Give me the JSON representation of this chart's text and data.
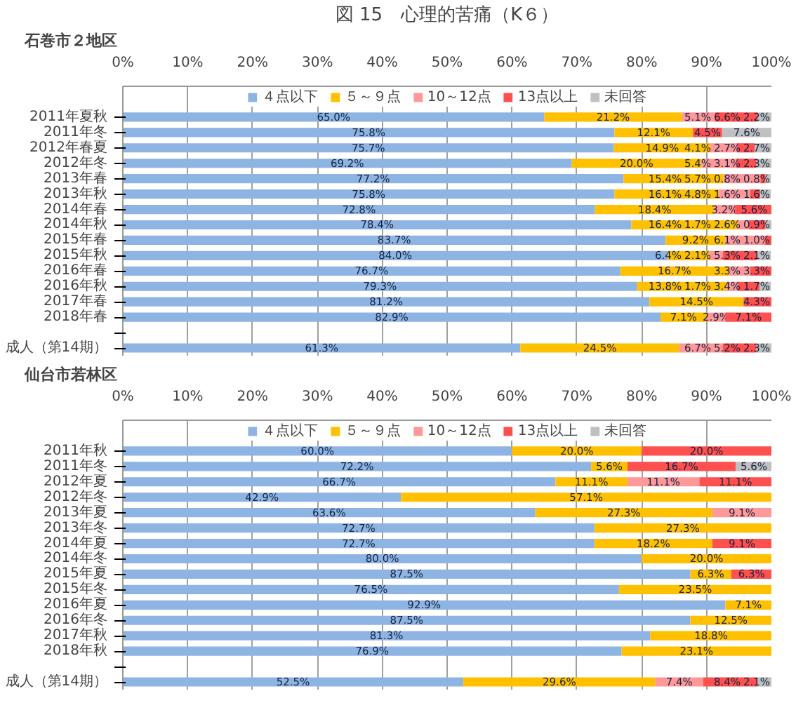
{
  "chart_data": [
    {
      "type": "bar",
      "orientation": "horizontal",
      "stacked": true,
      "title": "図 15　心理的苦痛（K６）",
      "subtitle": "石巻市２地区",
      "legend": "top",
      "grid": "x",
      "categories": [
        "2011年夏秋",
        "2011年冬",
        "2012年春夏",
        "2012年冬",
        "2013年春",
        "2013年秋",
        "2014年春",
        "2014年秋",
        "2015年春",
        "2015年秋",
        "2016年春",
        "2016年秋",
        "2017年春",
        "2018年春",
        null,
        "成人（第14期）"
      ],
      "xlim": [
        0,
        100
      ],
      "xticks": [
        {
          "value": 0,
          "label": "0%"
        },
        {
          "value": 10,
          "label": "10%"
        },
        {
          "value": 20,
          "label": "20%"
        },
        {
          "value": 30,
          "label": "30%"
        },
        {
          "value": 40,
          "label": "40%"
        },
        {
          "value": 50,
          "label": "50%"
        },
        {
          "value": 60,
          "label": "60%"
        },
        {
          "value": 70,
          "label": "70%"
        },
        {
          "value": 80,
          "label": "80%"
        },
        {
          "value": 90,
          "label": "90%"
        },
        {
          "value": 100,
          "label": "100%"
        }
      ],
      "series": [
        {
          "name": "４点以下",
          "color": "#8eb4e3",
          "values": [
            65.0,
            75.8,
            75.7,
            69.2,
            77.2,
            75.8,
            72.8,
            78.4,
            83.7,
            84.0,
            76.7,
            79.3,
            81.2,
            82.9,
            null,
            61.3
          ],
          "value_labels": [
            "65.0%",
            "75.8%",
            "75.7%",
            "69.2%",
            "77.2%",
            "75.8%",
            "72.8%",
            "78.4%",
            "83.7%",
            "84.0%",
            "76.7%",
            "79.3%",
            "81.2%",
            "82.9%",
            null,
            "61.3%"
          ]
        },
        {
          "name": "５～９点",
          "color": "#ffc000",
          "values": [
            21.2,
            12.1,
            14.9,
            20.0,
            15.4,
            16.1,
            18.4,
            16.4,
            9.2,
            6.4,
            16.7,
            13.8,
            14.5,
            7.1,
            null,
            24.5
          ],
          "value_labels": [
            "21.2%",
            "12.1%",
            "14.9%",
            "20.0%",
            "15.4%",
            "16.1%",
            "18.4%",
            "16.4%",
            "9.2%",
            "6.4%",
            "16.7%",
            "13.8%",
            "14.5%",
            "7.1%",
            null,
            "24.5%"
          ]
        },
        {
          "name": "10～12点",
          "color": "#ff9999",
          "values": [
            5.1,
            null,
            4.1,
            5.4,
            5.7,
            4.8,
            3.2,
            1.7,
            6.1,
            2.1,
            3.3,
            1.7,
            null,
            2.9,
            null,
            6.7
          ],
          "value_labels": [
            "5.1%",
            null,
            "4.1%",
            "5.4%",
            "5.7%",
            "4.8%",
            "3.2%",
            "1.7%",
            "6.1%",
            "2.1%",
            "3.3%",
            "1.7%",
            null,
            "2.9%",
            null,
            "6.7%"
          ]
        },
        {
          "name": "13点以上",
          "color": "#ff5050",
          "values": [
            6.6,
            4.5,
            2.7,
            3.1,
            0.8,
            1.6,
            5.6,
            2.6,
            1.0,
            5.3,
            3.3,
            3.4,
            4.3,
            7.1,
            null,
            5.2
          ],
          "value_labels": [
            "6.6%",
            "4.5%",
            "2.7%",
            "3.1%",
            "0.8%",
            "1.6%",
            "5.6%",
            "2.6%",
            "1.0%",
            "5.3%",
            "3.3%",
            "3.4%",
            "4.3%",
            "7.1%",
            null,
            "5.2%"
          ]
        },
        {
          "name": "未回答",
          "color": "#c0c0c0",
          "values": [
            2.2,
            7.6,
            2.7,
            2.3,
            0.8,
            1.6,
            null,
            0.9,
            null,
            2.1,
            null,
            1.7,
            null,
            null,
            null,
            2.3
          ],
          "value_labels": [
            "2.2%",
            "7.6%",
            "2.7%",
            "2.3%",
            "0.8%",
            "1.6%",
            null,
            "0.9%",
            null,
            "2.1%",
            null,
            "1.7%",
            null,
            null,
            null,
            "2.3%"
          ]
        }
      ]
    },
    {
      "type": "bar",
      "orientation": "horizontal",
      "stacked": true,
      "title": "仙台市若林区",
      "legend": "top",
      "grid": "x",
      "categories": [
        "2011年秋",
        "2011年冬",
        "2012年夏",
        "2012年冬",
        "2013年夏",
        "2013年冬",
        "2014年夏",
        "2014年冬",
        "2015年夏",
        "2015年冬",
        "2016年夏",
        "2016年冬",
        "2017年秋",
        "2018年秋",
        null,
        "成人（第14期）"
      ],
      "xlim": [
        0,
        100
      ],
      "xticks": [
        {
          "value": 0,
          "label": "0%"
        },
        {
          "value": 10,
          "label": "10%"
        },
        {
          "value": 20,
          "label": "20%"
        },
        {
          "value": 30,
          "label": "30%"
        },
        {
          "value": 40,
          "label": "40%"
        },
        {
          "value": 50,
          "label": "50%"
        },
        {
          "value": 60,
          "label": "60%"
        },
        {
          "value": 70,
          "label": "70%"
        },
        {
          "value": 80,
          "label": "80%"
        },
        {
          "value": 90,
          "label": "90%"
        },
        {
          "value": 100,
          "label": "100%"
        }
      ],
      "series": [
        {
          "name": "４点以下",
          "color": "#8eb4e3",
          "values": [
            60.0,
            72.2,
            66.7,
            42.9,
            63.6,
            72.7,
            72.7,
            80.0,
            87.5,
            76.5,
            92.9,
            87.5,
            81.3,
            76.9,
            null,
            52.5
          ],
          "value_labels": [
            "60.0%",
            "72.2%",
            "66.7%",
            "42.9%",
            "63.6%",
            "72.7%",
            "72.7%",
            "80.0%",
            "87.5%",
            "76.5%",
            "92.9%",
            "87.5%",
            "81.3%",
            "76.9%",
            null,
            "52.5%"
          ]
        },
        {
          "name": "５～９点",
          "color": "#ffc000",
          "values": [
            20.0,
            5.6,
            11.1,
            57.1,
            27.3,
            27.3,
            18.2,
            20.0,
            6.3,
            23.5,
            7.1,
            12.5,
            18.8,
            23.1,
            null,
            29.6
          ],
          "value_labels": [
            "20.0%",
            "5.6%",
            "11.1%",
            "57.1%",
            "27.3%",
            "27.3%",
            "18.2%",
            "20.0%",
            "6.3%",
            "23.5%",
            "7.1%",
            "12.5%",
            "18.8%",
            "23.1%",
            null,
            "29.6%"
          ]
        },
        {
          "name": "10～12点",
          "color": "#ff9999",
          "values": [
            null,
            null,
            11.1,
            null,
            9.1,
            null,
            null,
            null,
            null,
            null,
            null,
            null,
            null,
            null,
            null,
            7.4
          ],
          "value_labels": [
            null,
            null,
            "11.1%",
            null,
            "9.1%",
            null,
            null,
            null,
            null,
            null,
            null,
            null,
            null,
            null,
            null,
            "7.4%"
          ]
        },
        {
          "name": "13点以上",
          "color": "#ff5050",
          "values": [
            20.0,
            16.7,
            11.1,
            null,
            null,
            null,
            9.1,
            null,
            6.3,
            null,
            null,
            null,
            null,
            null,
            null,
            8.4
          ],
          "value_labels": [
            "20.0%",
            "16.7%",
            "11.1%",
            null,
            null,
            null,
            "9.1%",
            null,
            "6.3%",
            null,
            null,
            null,
            null,
            null,
            null,
            "8.4%"
          ]
        },
        {
          "name": "未回答",
          "color": "#c0c0c0",
          "values": [
            null,
            5.6,
            null,
            null,
            null,
            null,
            null,
            null,
            null,
            null,
            null,
            null,
            null,
            null,
            null,
            2.1
          ],
          "value_labels": [
            null,
            "5.6%",
            null,
            null,
            null,
            null,
            null,
            null,
            null,
            null,
            null,
            null,
            null,
            null,
            null,
            "2.1%"
          ]
        }
      ]
    }
  ]
}
